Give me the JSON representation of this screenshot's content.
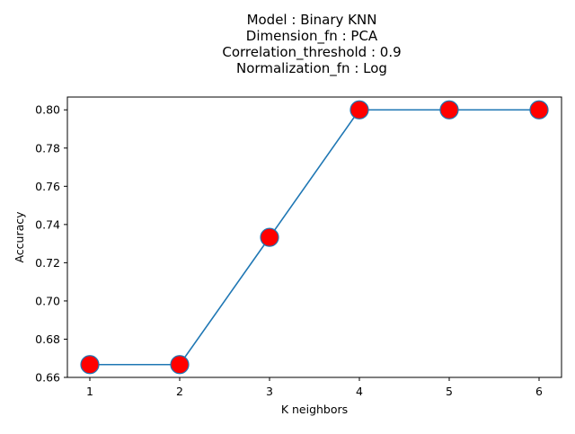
{
  "chart_data": {
    "type": "line",
    "title_lines": [
      "Model : Binary KNN",
      "Dimension_fn : PCA",
      "Correlation_threshold : 0.9",
      "Normalization_fn : Log"
    ],
    "xlabel": "K neighbors",
    "ylabel": "Accuracy",
    "x": [
      1,
      2,
      3,
      4,
      5,
      6
    ],
    "series": [
      {
        "values": [
          0.6667,
          0.6667,
          0.7333,
          0.8,
          0.8,
          0.8
        ]
      }
    ],
    "xticks": [
      "1",
      "2",
      "3",
      "4",
      "5",
      "6"
    ],
    "yticks": [
      "0.66",
      "0.68",
      "0.70",
      "0.72",
      "0.74",
      "0.76",
      "0.78",
      "0.80"
    ],
    "xlim": [
      0.75,
      6.25
    ],
    "ylim": [
      0.66,
      0.8067
    ],
    "grid": false,
    "line_color": "#1f77b4",
    "marker_fill": "#ff0000",
    "marker_edge": "#1f77b4"
  }
}
